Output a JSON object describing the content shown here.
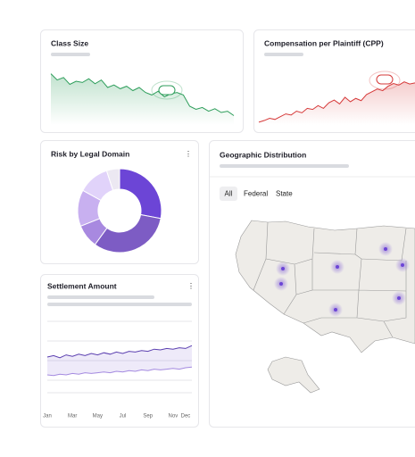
{
  "chart_data": [
    {
      "type": "line",
      "title": "Class Size",
      "color": "#2e9e5b",
      "ylim": [
        0,
        100
      ],
      "values": [
        82,
        72,
        76,
        65,
        70,
        68,
        74,
        66,
        72,
        60,
        64,
        58,
        62,
        55,
        60,
        52,
        48,
        54,
        45,
        50,
        52,
        48,
        30,
        25,
        28,
        22,
        26,
        20,
        22,
        15
      ]
    },
    {
      "type": "line",
      "title": "Compensation per Plaintiff (CPP)",
      "color": "#d63a3a",
      "ylim": [
        0,
        100
      ],
      "values": [
        5,
        8,
        12,
        10,
        15,
        20,
        18,
        25,
        22,
        30,
        28,
        35,
        30,
        40,
        45,
        38,
        50,
        42,
        48,
        44,
        55,
        60,
        65,
        62,
        70,
        75,
        72,
        78,
        74,
        76
      ]
    },
    {
      "type": "pie",
      "title": "Risk by Legal Domain",
      "values": [
        28,
        32,
        9,
        14,
        12,
        5
      ],
      "colors": [
        "#6c45d6",
        "#7d5cc4",
        "#a889e0",
        "#c8b0f0",
        "#e1d3fa",
        "#ece8f2"
      ]
    },
    {
      "type": "line",
      "title": "Settlement Amount",
      "ylim": [
        0,
        100
      ],
      "categories": [
        "Jan",
        null,
        null,
        null,
        "Mar",
        null,
        null,
        null,
        "May",
        null,
        null,
        null,
        "Jul",
        null,
        null,
        null,
        "Sep",
        null,
        null,
        null,
        "Nov",
        null,
        "Dec",
        null
      ],
      "series": [
        {
          "color": "#5b3fb0",
          "values": [
            50,
            52,
            49,
            53,
            51,
            54,
            52,
            55,
            53,
            56,
            54,
            57,
            55,
            58,
            57,
            59,
            58,
            61,
            60,
            62,
            61,
            63,
            62,
            66
          ]
        },
        {
          "color": "#a48ae0",
          "values": [
            25,
            24,
            26,
            25,
            27,
            26,
            28,
            27,
            28,
            29,
            28,
            30,
            29,
            31,
            30,
            32,
            31,
            33,
            32,
            33,
            34,
            33,
            35,
            36
          ]
        }
      ]
    }
  ],
  "map": {
    "title": "Geographic Distribution",
    "tabs": [
      "All",
      "Federal",
      "State"
    ]
  }
}
